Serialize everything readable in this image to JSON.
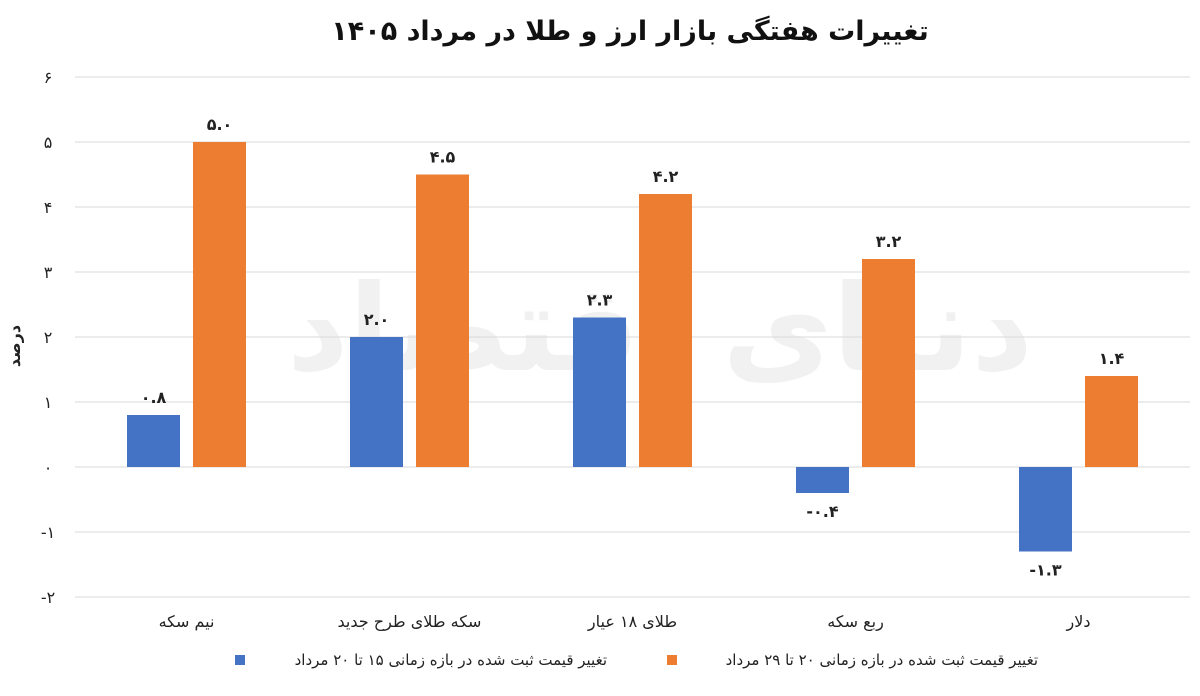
{
  "chart_data": {
    "type": "bar",
    "title": "تغییرات هفتگی بازار ارز و طلا در مرداد ۱۴۰۵",
    "ylabel": "درصد",
    "xlabel": "",
    "ylim": [
      -2,
      6
    ],
    "yticks": [
      -2,
      -1,
      0,
      1,
      2,
      3,
      4,
      5,
      6
    ],
    "ytick_labels": [
      "-۲",
      "-۱",
      "۰",
      "۱",
      "۲",
      "۳",
      "۴",
      "۵",
      "۶"
    ],
    "grid": true,
    "legend_position": "bottom",
    "categories": [
      "نیم سکه",
      "سکه طلای طرح جدید",
      "طلای ۱۸ عیار",
      "ربع سکه",
      "دلار"
    ],
    "series": [
      {
        "name": "تغییر قیمت ثبت شده در بازه زمانی ۱۵ تا ۲۰ مرداد",
        "color": "#4472c4",
        "values": [
          0.8,
          2.0,
          2.3,
          -0.4,
          -1.3
        ],
        "labels": [
          "۰.۸",
          "۲.۰",
          "۲.۳",
          "-۰.۴",
          "-۱.۳"
        ]
      },
      {
        "name": "تغییر قیمت ثبت شده در بازه زمانی ۲۰ تا ۲۹ مرداد",
        "color": "#ed7d31",
        "values": [
          5.0,
          4.5,
          4.2,
          3.2,
          1.4
        ],
        "labels": [
          "۵.۰",
          "۴.۵",
          "۴.۲",
          "۳.۲",
          "۱.۴"
        ]
      }
    ]
  },
  "watermark": "دنیای اقتصاد"
}
